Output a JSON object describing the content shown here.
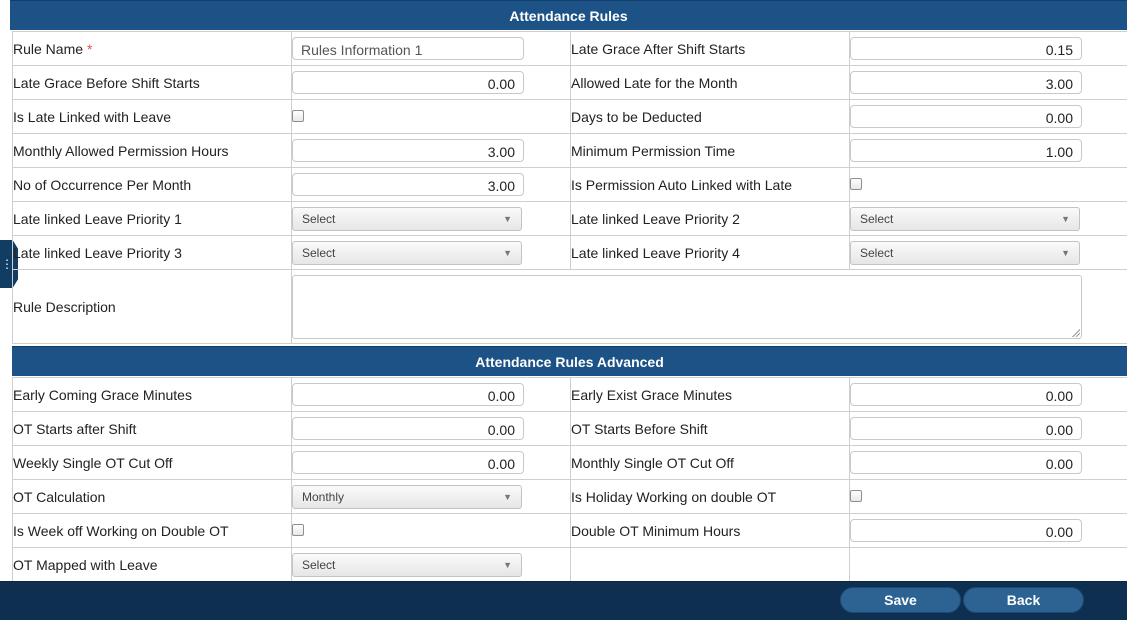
{
  "sections": {
    "basic_title": "Attendance Rules",
    "advanced_title": "Attendance Rules Advanced"
  },
  "basic": {
    "rule_name_label": "Rule Name",
    "rule_name_required": "*",
    "rule_name_value": "Rules Information 1",
    "late_grace_after_label": "Late Grace After Shift Starts",
    "late_grace_after_value": "0.15",
    "late_grace_before_label": "Late Grace Before Shift Starts",
    "late_grace_before_value": "0.00",
    "allowed_late_label": "Allowed Late for the Month",
    "allowed_late_value": "3.00",
    "late_linked_leave_label": "Is Late Linked with Leave",
    "late_linked_leave_checked": false,
    "days_deducted_label": "Days to be Deducted",
    "days_deducted_value": "0.00",
    "monthly_permission_label": "Monthly Allowed Permission Hours",
    "monthly_permission_value": "3.00",
    "min_permission_label": "Minimum Permission Time",
    "min_permission_value": "1.00",
    "occurrence_label": "No of Occurrence Per Month",
    "occurrence_value": "3.00",
    "permission_auto_linked_label": "Is Permission Auto Linked with Late",
    "permission_auto_linked_checked": false,
    "priority1_label": "Late linked Leave Priority 1",
    "priority1_value": "Select",
    "priority2_label": "Late linked Leave Priority 2",
    "priority2_value": "Select",
    "priority3_label": "Late linked Leave Priority 3",
    "priority3_value": "Select",
    "priority4_label": "Late linked Leave Priority 4",
    "priority4_value": "Select",
    "description_label": "Rule Description",
    "description_value": ""
  },
  "advanced": {
    "early_coming_label": "Early Coming Grace Minutes",
    "early_coming_value": "0.00",
    "early_exist_label": "Early Exist Grace Minutes",
    "early_exist_value": "0.00",
    "ot_after_label": "OT Starts after Shift",
    "ot_after_value": "0.00",
    "ot_before_label": "OT Starts Before Shift",
    "ot_before_value": "0.00",
    "weekly_ot_label": "Weekly Single OT Cut Off",
    "weekly_ot_value": "0.00",
    "monthly_ot_label": "Monthly Single OT Cut Off",
    "monthly_ot_value": "0.00",
    "ot_calc_label": "OT Calculation",
    "ot_calc_value": "Monthly",
    "holiday_double_label": "Is Holiday Working on double OT",
    "holiday_double_checked": false,
    "weekoff_double_label": "Is Week off Working on Double OT",
    "weekoff_double_checked": false,
    "double_min_label": "Double OT Minimum Hours",
    "double_min_value": "0.00",
    "ot_leave_label": "OT Mapped with Leave",
    "ot_leave_value": "Select"
  },
  "footer": {
    "save_label": "Save",
    "back_label": "Back"
  },
  "icons": {
    "side_handle": "vertical-dots-icon",
    "dropdown": "caret-down-icon"
  },
  "colors": {
    "header_bar": "#1c5286",
    "footer_bar": "#0e2f4f",
    "button": "#2c6393",
    "required": "#d9534f"
  }
}
